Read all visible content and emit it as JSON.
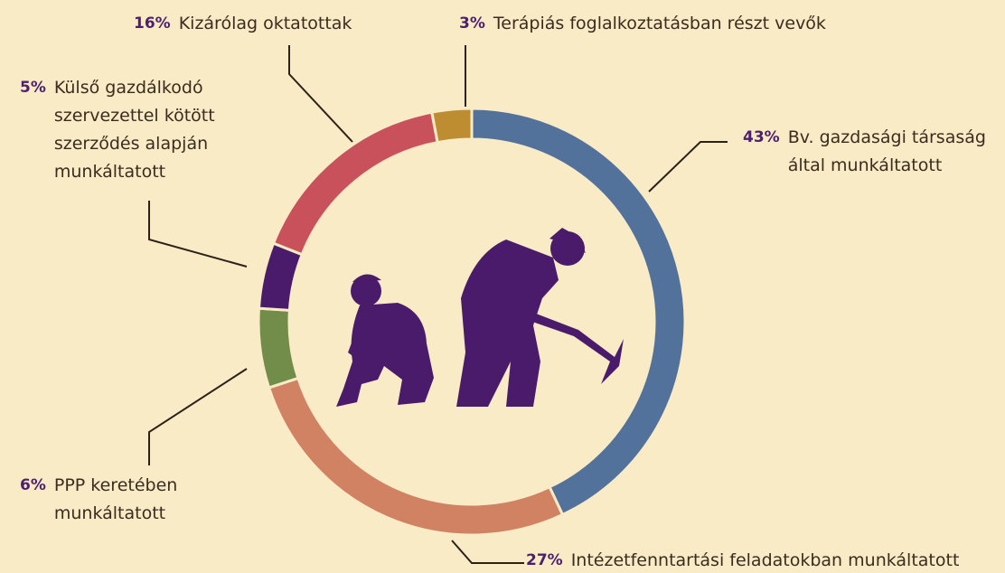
{
  "chart_data": {
    "type": "donut",
    "categories": [
      "Bv. gazdasági társaság által munkáltatott",
      "Intézetfenntartási feladatokban munkáltatott",
      "PPP keretében munkáltatott",
      "Külső gazdálkodó szervezettel kötött szerződés alapján munkáltatott",
      "Kizárólag oktatottak",
      "Terápiás foglalkoztatásban részt vevők"
    ],
    "values": [
      43,
      27,
      6,
      5,
      16,
      3
    ],
    "value_labels": [
      "43%",
      "27%",
      "6%",
      "5%",
      "16%",
      "3%"
    ],
    "colors": [
      "#53729b",
      "#d08262",
      "#728d49",
      "#4b1b6b",
      "#c9515b",
      "#bf8d31"
    ]
  }
}
